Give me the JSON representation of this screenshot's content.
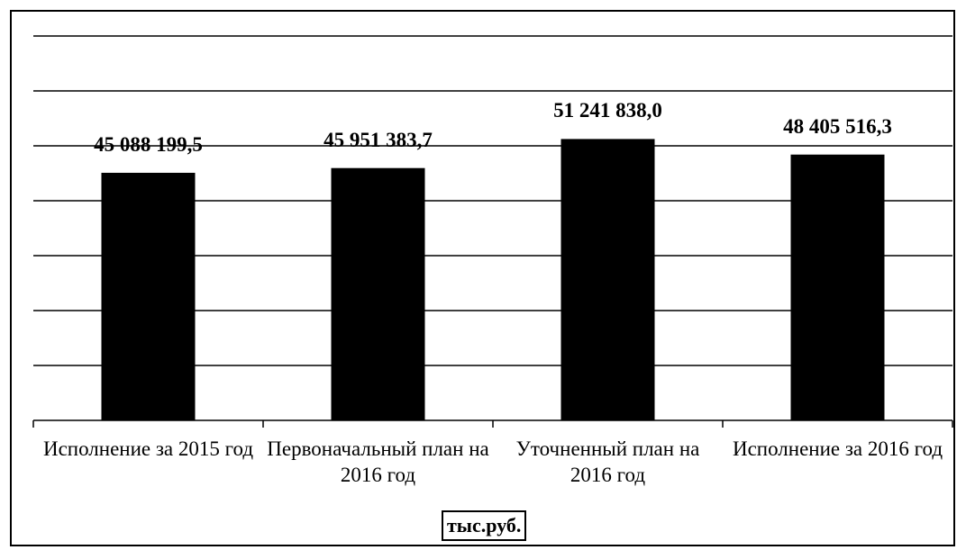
{
  "chart_data": {
    "type": "bar",
    "categories": [
      "Исполнение за 2015 год",
      "Первоначальный план на 2016 год",
      "Уточненный план на 2016 год",
      "Исполнение за 2016 год"
    ],
    "values": [
      45088199.5,
      45951383.7,
      51241838.0,
      48405516.3
    ],
    "value_labels": [
      "45 088 199,5",
      "45 951 383,7",
      "51 241 838,0",
      "48 405 516,3"
    ],
    "color": "#000000",
    "x_label": "тыс.руб.",
    "ylim": [
      0,
      70000000
    ],
    "yticks": [
      0,
      10000000,
      20000000,
      30000000,
      40000000,
      50000000,
      60000000,
      70000000
    ],
    "grid": true
  }
}
